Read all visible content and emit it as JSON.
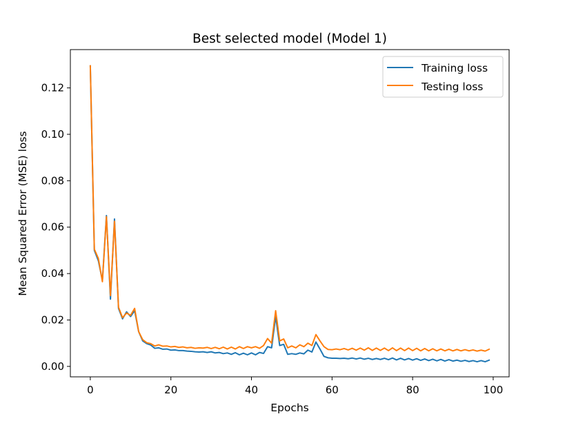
{
  "chart_data": {
    "type": "line",
    "title": "Best selected model (Model 1)",
    "xlabel": "Epochs",
    "ylabel": "Mean Squared Error (MSE) loss",
    "xlim": [
      -4.95,
      103.95
    ],
    "ylim": [
      -0.0045,
      0.1365
    ],
    "xticks": [
      0,
      20,
      40,
      60,
      80,
      100
    ],
    "xtick_labels": [
      "0",
      "20",
      "40",
      "60",
      "80",
      "100"
    ],
    "yticks": [
      0.0,
      0.02,
      0.04,
      0.06,
      0.08,
      0.1,
      0.12
    ],
    "ytick_labels": [
      "0.00",
      "0.02",
      "0.04",
      "0.06",
      "0.08",
      "0.10",
      "0.12"
    ],
    "grid": false,
    "legend_position": "top-right",
    "series": [
      {
        "name": "Training loss",
        "color": "#1f77b4",
        "values": [
          0.1295,
          0.05,
          0.0455,
          0.037,
          0.065,
          0.029,
          0.0635,
          0.025,
          0.0205,
          0.0235,
          0.0215,
          0.024,
          0.015,
          0.011,
          0.0098,
          0.0092,
          0.0078,
          0.008,
          0.0074,
          0.0075,
          0.007,
          0.0071,
          0.0068,
          0.0068,
          0.0066,
          0.0065,
          0.0063,
          0.0062,
          0.0063,
          0.006,
          0.0063,
          0.0058,
          0.006,
          0.0055,
          0.0058,
          0.0052,
          0.0059,
          0.005,
          0.0057,
          0.005,
          0.0058,
          0.005,
          0.006,
          0.0056,
          0.0085,
          0.008,
          0.0215,
          0.009,
          0.0095,
          0.0052,
          0.0055,
          0.0052,
          0.0058,
          0.0054,
          0.007,
          0.0062,
          0.0105,
          0.0075,
          0.0043,
          0.0037,
          0.0035,
          0.0035,
          0.0034,
          0.0035,
          0.0033,
          0.0036,
          0.0032,
          0.0036,
          0.0031,
          0.0035,
          0.003,
          0.0034,
          0.003,
          0.0035,
          0.0029,
          0.0036,
          0.0028,
          0.0035,
          0.0028,
          0.0034,
          0.0027,
          0.0033,
          0.0026,
          0.0032,
          0.0025,
          0.0031,
          0.0024,
          0.003,
          0.0023,
          0.0029,
          0.0023,
          0.0027,
          0.0022,
          0.0026,
          0.0021,
          0.0025,
          0.002,
          0.0025,
          0.002,
          0.0027
        ]
      },
      {
        "name": "Testing loss",
        "color": "#ff7f0e",
        "values": [
          0.1295,
          0.0505,
          0.0465,
          0.0365,
          0.0645,
          0.0305,
          0.0625,
          0.0255,
          0.021,
          0.023,
          0.022,
          0.025,
          0.015,
          0.0115,
          0.0102,
          0.0098,
          0.0088,
          0.0093,
          0.0087,
          0.0088,
          0.0084,
          0.0086,
          0.0082,
          0.0084,
          0.008,
          0.0082,
          0.0078,
          0.008,
          0.0079,
          0.0082,
          0.0077,
          0.0082,
          0.0076,
          0.0083,
          0.0075,
          0.0083,
          0.0075,
          0.0085,
          0.0077,
          0.0085,
          0.008,
          0.0085,
          0.0078,
          0.009,
          0.012,
          0.01,
          0.024,
          0.011,
          0.0118,
          0.008,
          0.0088,
          0.008,
          0.0093,
          0.0085,
          0.01,
          0.009,
          0.0137,
          0.011,
          0.0085,
          0.0073,
          0.0072,
          0.0075,
          0.0072,
          0.0077,
          0.0071,
          0.0078,
          0.007,
          0.0079,
          0.007,
          0.008,
          0.0069,
          0.0079,
          0.0069,
          0.0079,
          0.0068,
          0.008,
          0.0068,
          0.0079,
          0.0068,
          0.0079,
          0.0068,
          0.0078,
          0.0067,
          0.0077,
          0.0067,
          0.0076,
          0.0067,
          0.0075,
          0.0067,
          0.0074,
          0.0067,
          0.0073,
          0.0067,
          0.0072,
          0.0067,
          0.0071,
          0.0066,
          0.007,
          0.0066,
          0.0074
        ]
      }
    ]
  }
}
